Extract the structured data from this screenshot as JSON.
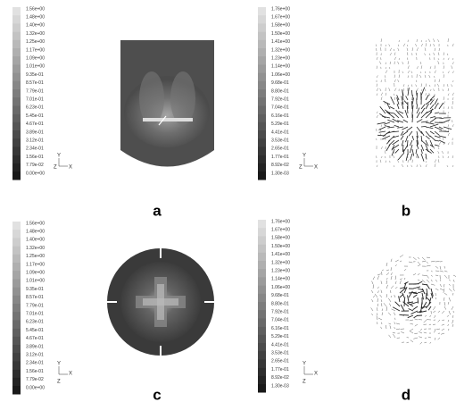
{
  "panels": [
    {
      "label": "a",
      "colorbar": [
        "1.56e+00",
        "1.48e+00",
        "1.40e+00",
        "1.32e+00",
        "1.25e+00",
        "1.17e+00",
        "1.09e+00",
        "1.01e+00",
        "9.35e-01",
        "8.57e-01",
        "7.79e-01",
        "7.01e-01",
        "6.23e-01",
        "5.45e-01",
        "4.67e-01",
        "3.89e-01",
        "3.12e-01",
        "2.34e-01",
        "1.56e-01",
        "7.79e-02",
        "0.00e+00"
      ],
      "triad": [
        "Y",
        "Z",
        "X"
      ]
    },
    {
      "label": "b",
      "colorbar": [
        "1.76e+00",
        "1.67e+00",
        "1.58e+00",
        "1.50e+00",
        "1.41e+00",
        "1.32e+00",
        "1.23e+00",
        "1.14e+00",
        "1.06e+00",
        "9.68e-01",
        "8.80e-01",
        "7.92e-01",
        "7.04e-01",
        "6.16e-01",
        "5.29e-01",
        "4.41e-01",
        "3.53e-01",
        "2.65e-01",
        "1.77e-01",
        "8.92e-02",
        "1.30e-03"
      ],
      "triad": [
        "Y",
        "Z",
        "X"
      ]
    },
    {
      "label": "c",
      "colorbar": [
        "1.56e+00",
        "1.48e+00",
        "1.40e+00",
        "1.32e+00",
        "1.25e+00",
        "1.17e+00",
        "1.09e+00",
        "1.01e+00",
        "9.35e-01",
        "8.57e-01",
        "7.79e-01",
        "7.01e-01",
        "6.23e-01",
        "5.45e-01",
        "4.67e-01",
        "3.89e-01",
        "3.12e-01",
        "2.34e-01",
        "1.56e-01",
        "7.79e-02",
        "0.00e+00"
      ],
      "triad": [
        "Y",
        "X",
        "Z"
      ]
    },
    {
      "label": "d",
      "colorbar": [
        "1.76e+00",
        "1.67e+00",
        "1.58e+00",
        "1.50e+00",
        "1.41e+00",
        "1.32e+00",
        "1.23e+00",
        "1.14e+00",
        "1.06e+00",
        "9.68e-01",
        "8.80e-01",
        "7.92e-01",
        "7.04e-01",
        "6.16e-01",
        "5.29e-01",
        "4.41e-01",
        "3.53e-01",
        "2.65e-01",
        "1.77e-01",
        "8.92e-02",
        "1.30e-03"
      ],
      "triad": [
        "Y",
        "X",
        "Z"
      ]
    }
  ]
}
